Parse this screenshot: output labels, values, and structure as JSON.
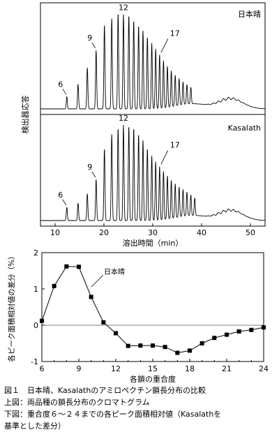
{
  "chart_data": [
    {
      "type": "line",
      "title": "日本晴",
      "xlabel": "溶出時間（min）",
      "ylabel": "検出器応答",
      "xlim": [
        7,
        53
      ],
      "ylim": [
        0,
        1
      ],
      "x_ticks": [
        10,
        20,
        30,
        40,
        50
      ],
      "peak_annotations": [
        {
          "label": "6",
          "time": 12.4
        },
        {
          "label": "9",
          "time": 18.4
        },
        {
          "label": "12",
          "time": 23.6
        },
        {
          "label": "17",
          "time": 31.2
        }
      ],
      "peaks": [
        {
          "time": 12.4,
          "height": 0.12
        },
        {
          "time": 14.7,
          "height": 0.24
        },
        {
          "time": 16.6,
          "height": 0.4
        },
        {
          "time": 18.4,
          "height": 0.57
        },
        {
          "time": 20.1,
          "height": 0.82
        },
        {
          "time": 21.6,
          "height": 0.88
        },
        {
          "time": 22.9,
          "height": 0.93
        },
        {
          "time": 24.0,
          "height": 0.92
        },
        {
          "time": 25.1,
          "height": 0.91
        },
        {
          "time": 26.1,
          "height": 0.86
        },
        {
          "time": 27.1,
          "height": 0.81
        },
        {
          "time": 28.0,
          "height": 0.76
        },
        {
          "time": 28.9,
          "height": 0.7
        },
        {
          "time": 29.8,
          "height": 0.64
        },
        {
          "time": 30.6,
          "height": 0.58
        },
        {
          "time": 31.4,
          "height": 0.52
        },
        {
          "time": 32.2,
          "height": 0.46
        },
        {
          "time": 33.0,
          "height": 0.4
        },
        {
          "time": 33.8,
          "height": 0.35
        },
        {
          "time": 34.6,
          "height": 0.3
        },
        {
          "time": 35.4,
          "height": 0.26
        },
        {
          "time": 36.2,
          "height": 0.22
        },
        {
          "time": 37.0,
          "height": 0.19
        },
        {
          "time": 37.8,
          "height": 0.16
        }
      ],
      "broad_peak": {
        "time": 46,
        "height": 0.1
      }
    },
    {
      "type": "line",
      "title": "Kasalath",
      "xlabel": "溶出時間（min）",
      "ylabel": "検出器応答",
      "xlim": [
        7,
        53
      ],
      "ylim": [
        0,
        1
      ],
      "x_ticks": [
        10,
        20,
        30,
        40,
        50
      ],
      "peak_annotations": [
        {
          "label": "6",
          "time": 12.4
        },
        {
          "label": "9",
          "time": 18.4
        },
        {
          "label": "12",
          "time": 23.6
        },
        {
          "label": "17",
          "time": 31.2
        }
      ],
      "peaks": [
        {
          "time": 12.4,
          "height": 0.13
        },
        {
          "time": 14.7,
          "height": 0.17
        },
        {
          "time": 16.6,
          "height": 0.26
        },
        {
          "time": 18.4,
          "height": 0.4
        },
        {
          "time": 20.1,
          "height": 0.7
        },
        {
          "time": 21.6,
          "height": 0.84
        },
        {
          "time": 22.9,
          "height": 0.9
        },
        {
          "time": 24.0,
          "height": 0.93
        },
        {
          "time": 25.1,
          "height": 0.92
        },
        {
          "time": 26.1,
          "height": 0.9
        },
        {
          "time": 27.1,
          "height": 0.84
        },
        {
          "time": 28.0,
          "height": 0.78
        },
        {
          "time": 28.9,
          "height": 0.7
        },
        {
          "time": 29.8,
          "height": 0.63
        },
        {
          "time": 30.6,
          "height": 0.57
        },
        {
          "time": 31.4,
          "height": 0.52
        },
        {
          "time": 32.2,
          "height": 0.47
        },
        {
          "time": 33.0,
          "height": 0.42
        },
        {
          "time": 33.8,
          "height": 0.37
        },
        {
          "time": 34.6,
          "height": 0.33
        },
        {
          "time": 35.4,
          "height": 0.29
        },
        {
          "time": 36.2,
          "height": 0.26
        },
        {
          "time": 37.0,
          "height": 0.23
        },
        {
          "time": 37.8,
          "height": 0.2
        },
        {
          "time": 38.6,
          "height": 0.17
        }
      ],
      "broad_peak": {
        "time": 46,
        "height": 0.1
      }
    },
    {
      "type": "line",
      "title": "",
      "xlabel": "各鎖の重合度",
      "ylabel": "各ピーク面積相対値の差分（%）",
      "xlim": [
        6,
        24
      ],
      "ylim": [
        -1,
        2
      ],
      "x_ticks": [
        6,
        9,
        12,
        15,
        18,
        21,
        24
      ],
      "y_ticks": [
        -1,
        0,
        1,
        2
      ],
      "series": [
        {
          "name": "日本晴",
          "x": [
            6,
            7,
            8,
            9,
            10,
            11,
            12,
            13,
            14,
            15,
            16,
            17,
            18,
            19,
            20,
            21,
            22,
            23,
            24
          ],
          "y": [
            0.12,
            1.08,
            1.62,
            1.61,
            0.78,
            0.08,
            -0.22,
            -0.57,
            -0.56,
            -0.56,
            -0.6,
            -0.76,
            -0.7,
            -0.5,
            -0.35,
            -0.26,
            -0.17,
            -0.13,
            -0.06
          ]
        }
      ]
    }
  ],
  "caption": {
    "line1": "図１　日本晴、Kasalathのアミロペクチン鎖長分布の比較",
    "line2": "上図：両品種の鎖長分布のクロマトグラム",
    "line3": "下図：重合度６～２４までの各ピーク面積相対値（Kasalathを",
    "line4": "基準とした差分）"
  }
}
